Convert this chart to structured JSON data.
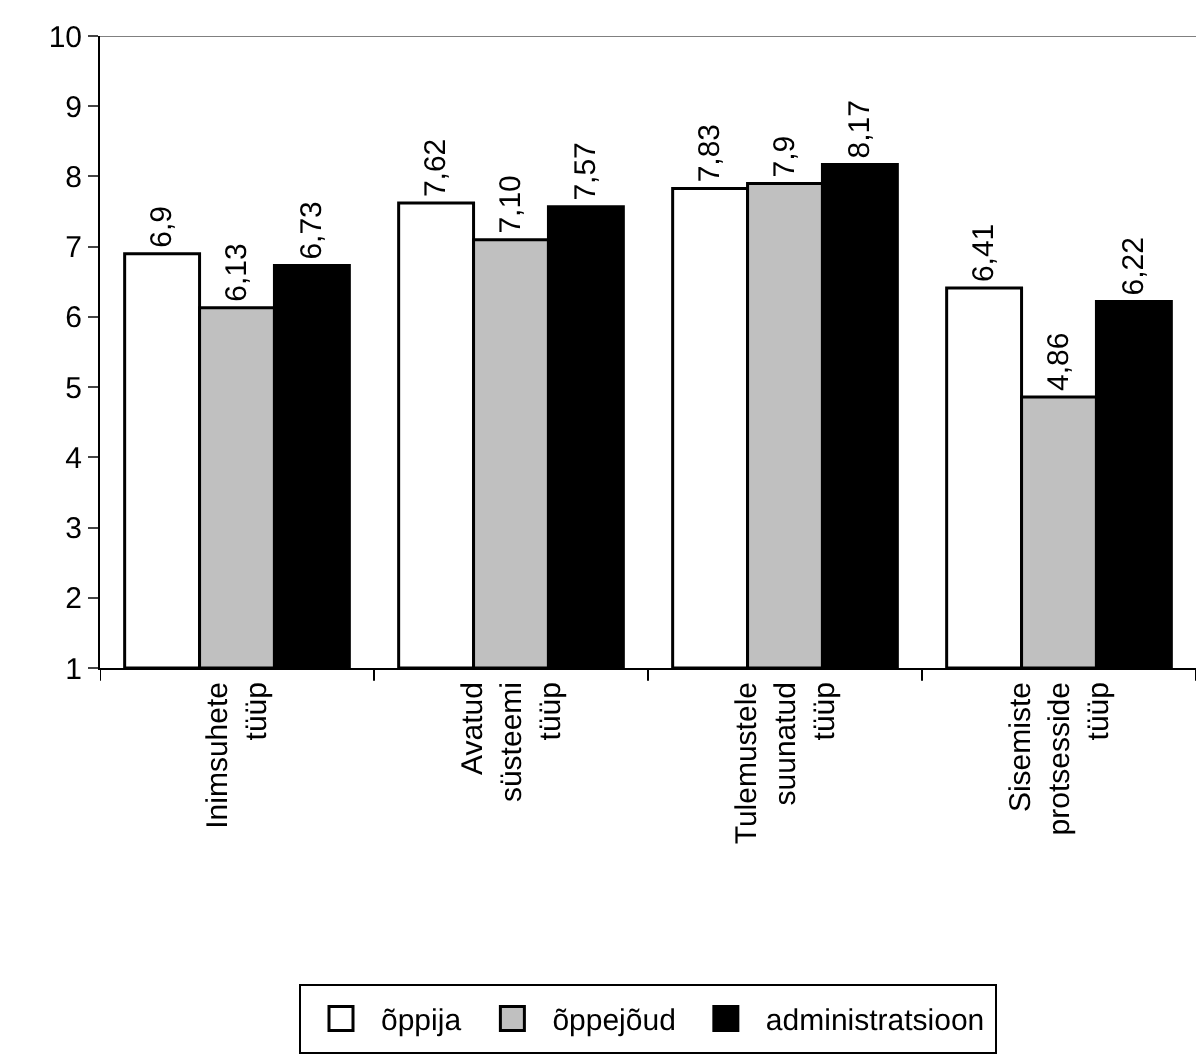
{
  "chart_data": {
    "type": "bar",
    "categories": [
      "Inimsuhete\ntüüp",
      "Avatud\nsüsteemi\ntüüp",
      "Tulemustele\nsuunatud\ntüüp",
      "Sisemiste\nprotsesside\ntüüp"
    ],
    "series": [
      {
        "name": "õppija",
        "color": "#ffffff",
        "values": [
          6.9,
          7.62,
          7.83,
          6.41
        ],
        "value_labels": [
          "6,9",
          "7,62",
          "7,83",
          "6,41"
        ]
      },
      {
        "name": "õppejõud",
        "color": "#c0c0c0",
        "values": [
          6.13,
          7.1,
          7.9,
          4.86
        ],
        "value_labels": [
          "6,13",
          "7,10",
          "7,9",
          "4,86"
        ]
      },
      {
        "name": "administratsioon",
        "color": "#000000",
        "values": [
          6.73,
          7.57,
          8.17,
          6.22
        ],
        "value_labels": [
          "6,73",
          "7,57",
          "8,17",
          "6,22"
        ]
      }
    ],
    "ylim": [
      1,
      10
    ],
    "yticks": [
      1,
      2,
      3,
      4,
      5,
      6,
      7,
      8,
      9,
      10
    ],
    "legend": "bottom"
  }
}
